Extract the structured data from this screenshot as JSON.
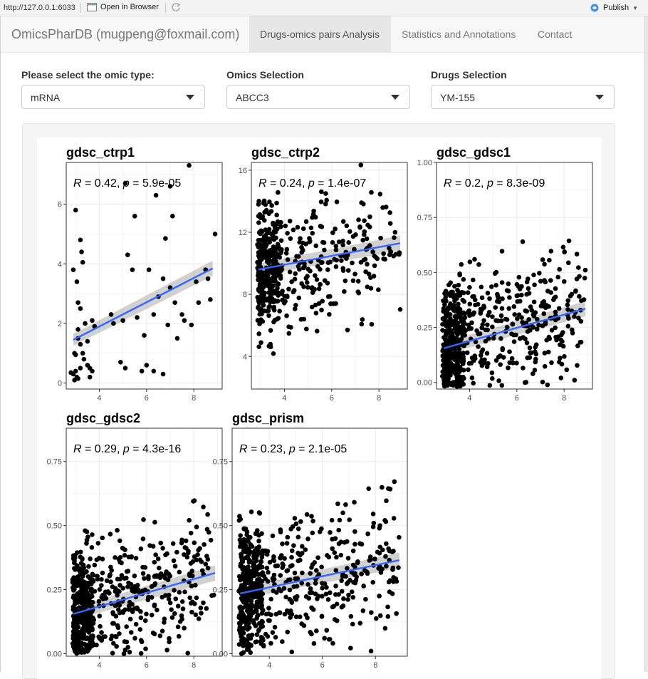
{
  "viewer": {
    "url": "http://127.0.0.1:6033",
    "open_in_browser": "Open in Browser",
    "publish": "Publish"
  },
  "navbar": {
    "brand": "OmicsPharDB (mugpeng@foxmail.com)",
    "tabs": [
      {
        "label": "Drugs-omics pairs Analysis",
        "active": true
      },
      {
        "label": "Statistics and Annotations",
        "active": false
      },
      {
        "label": "Contact",
        "active": false
      }
    ]
  },
  "inputs": {
    "omic_type": {
      "label": "Please select the omic type:",
      "value": "mRNA"
    },
    "omics": {
      "label": "Omics Selection",
      "value": "ABCC3"
    },
    "drugs": {
      "label": "Drugs Selection",
      "value": "YM-155"
    }
  },
  "colors": {
    "accent": "#3366ff",
    "point": "#000000",
    "ci_band": "#999999"
  },
  "chart_data": [
    {
      "type": "scatter",
      "title": "gdsc_ctrp1",
      "annotation": {
        "R": "0.42",
        "p": "5.9e-05"
      },
      "xlim": [
        2.6,
        9.2
      ],
      "ylim": [
        -0.2,
        7.4
      ],
      "xticks": [
        4,
        6,
        8
      ],
      "yticks": [
        0,
        2,
        4,
        6
      ],
      "fit": {
        "x0": 2.9,
        "y0": 1.45,
        "x1": 8.8,
        "y1": 3.85
      },
      "points": [
        [
          2.8,
          0.35
        ],
        [
          2.9,
          0.3
        ],
        [
          2.95,
          0.1
        ],
        [
          3.0,
          0.4
        ],
        [
          3.05,
          0.2
        ],
        [
          3.1,
          0.15
        ],
        [
          3.0,
          0.95
        ],
        [
          3.2,
          0.5
        ],
        [
          2.9,
          3.8
        ],
        [
          3.05,
          3.4
        ],
        [
          3.1,
          2.7
        ],
        [
          3.0,
          5.8
        ],
        [
          3.2,
          4.8
        ],
        [
          3.25,
          4.4
        ],
        [
          3.3,
          4.05
        ],
        [
          3.1,
          1.8
        ],
        [
          3.2,
          1.3
        ],
        [
          3.3,
          1.0
        ],
        [
          3.35,
          0.8
        ],
        [
          3.4,
          2.0
        ],
        [
          3.5,
          0.6
        ],
        [
          3.6,
          0.5
        ],
        [
          3.5,
          1.4
        ],
        [
          3.7,
          2.1
        ],
        [
          3.8,
          1.9
        ],
        [
          3.2,
          2.5
        ],
        [
          3.1,
          1.5
        ],
        [
          3.6,
          0.2
        ],
        [
          3.7,
          0.4
        ],
        [
          2.95,
          1.0
        ],
        [
          4.5,
          2.3
        ],
        [
          4.6,
          2.0
        ],
        [
          4.9,
          0.7
        ],
        [
          5.0,
          2.1
        ],
        [
          5.1,
          0.5
        ],
        [
          5.1,
          6.7
        ],
        [
          5.2,
          4.3
        ],
        [
          5.4,
          3.8
        ],
        [
          5.5,
          5.6
        ],
        [
          5.6,
          2.2
        ],
        [
          5.8,
          0.4
        ],
        [
          5.9,
          1.6
        ],
        [
          6.0,
          0.6
        ],
        [
          6.1,
          3.8
        ],
        [
          6.3,
          2.3
        ],
        [
          6.3,
          0.4
        ],
        [
          6.4,
          6.3
        ],
        [
          6.5,
          2.9
        ],
        [
          6.7,
          3.5
        ],
        [
          6.7,
          0.3
        ],
        [
          6.8,
          4.85
        ],
        [
          6.9,
          1.95
        ],
        [
          7.0,
          3.2
        ],
        [
          7.0,
          6.6
        ],
        [
          7.1,
          5.6
        ],
        [
          7.2,
          2.7
        ],
        [
          7.3,
          1.5
        ],
        [
          7.5,
          2.3
        ],
        [
          7.6,
          2.1
        ],
        [
          7.8,
          7.3
        ],
        [
          7.9,
          1.95
        ],
        [
          8.1,
          3.4
        ],
        [
          8.2,
          2.7
        ],
        [
          8.5,
          3.8
        ],
        [
          8.6,
          3.5
        ],
        [
          8.7,
          2.8
        ],
        [
          8.9,
          5.0
        ]
      ]
    },
    {
      "type": "scatter",
      "title": "gdsc_ctrp2",
      "annotation": {
        "R": "0.24",
        "p": "1.4e-07"
      },
      "xlim": [
        2.6,
        9.2
      ],
      "ylim": [
        1.9,
        16.5
      ],
      "xticks": [
        4,
        6,
        8
      ],
      "yticks": [
        4,
        8,
        12,
        16
      ],
      "fit": {
        "x0": 2.9,
        "y0": 9.6,
        "x1": 8.9,
        "y1": 11.3
      }
    },
    {
      "type": "scatter",
      "title": "gdsc_gdsc1",
      "annotation": {
        "R": "0.2",
        "p": "8.3e-09"
      },
      "xlim": [
        2.6,
        9.2
      ],
      "ylim": [
        -0.03,
        1.0
      ],
      "xticks": [
        4,
        6,
        8
      ],
      "yticks": [
        0.0,
        0.25,
        0.5,
        0.75,
        1.0
      ],
      "ytick_labels": [
        "0.00",
        "0.25",
        "0.50",
        "0.75",
        "1.00"
      ],
      "fit": {
        "x0": 2.9,
        "y0": 0.155,
        "x1": 8.9,
        "y1": 0.335
      }
    },
    {
      "type": "scatter",
      "title": "gdsc_gdsc2",
      "annotation": {
        "R": "0.29",
        "p": "4.3e-16"
      },
      "xlim": [
        2.6,
        9.2
      ],
      "ylim": [
        -0.01,
        0.88
      ],
      "xticks": [
        4,
        6,
        8
      ],
      "yticks": [
        0.0,
        0.25,
        0.5,
        0.75
      ],
      "ytick_labels": [
        "0.00",
        "0.25",
        "0.50",
        "0.75"
      ],
      "fit": {
        "x0": 2.9,
        "y0": 0.155,
        "x1": 8.9,
        "y1": 0.315
      }
    },
    {
      "type": "scatter",
      "title": "gdsc_prism",
      "annotation": {
        "R": "0.23",
        "p": "2.1e-05"
      },
      "xlim": [
        2.6,
        9.2
      ],
      "ylim": [
        -0.01,
        0.88
      ],
      "xticks": [
        4,
        6,
        8
      ],
      "yticks": [
        0.0,
        0.25,
        0.5,
        0.75
      ],
      "ytick_labels": [
        "0.00",
        "0.25",
        "0.50",
        "0.75"
      ],
      "fit": {
        "x0": 2.9,
        "y0": 0.235,
        "x1": 8.9,
        "y1": 0.365
      }
    }
  ]
}
